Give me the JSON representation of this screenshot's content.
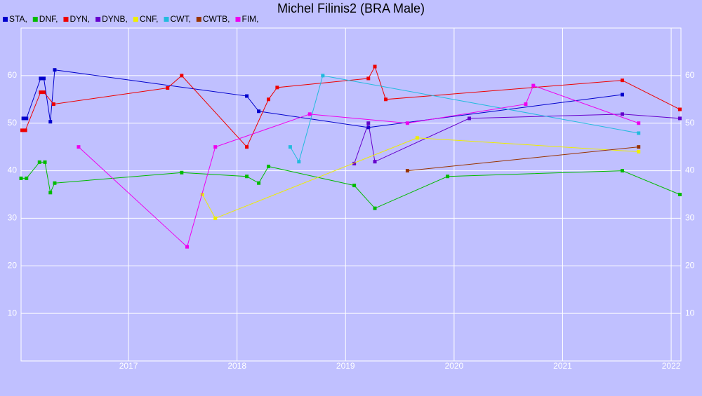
{
  "chart_data": {
    "type": "line",
    "title": "Michel Filinis2 (BRA Male)",
    "xlim": [
      2016.01,
      2022.09
    ],
    "xticks": [
      2017,
      2018,
      2019,
      2020,
      2021,
      2022
    ],
    "ylim": [
      0,
      70
    ],
    "yticks": [
      10,
      20,
      30,
      40,
      50,
      60
    ],
    "grid": true,
    "series": [
      {
        "name": "STA,",
        "color": "#0000cc",
        "x": [
          2016.03,
          2016.06,
          2016.19,
          2016.22,
          2016.28,
          2016.32,
          2018.09,
          2018.2,
          2019.21,
          2021.55
        ],
        "values": [
          51.0,
          51.0,
          59.4,
          59.4,
          50.3,
          61.2,
          55.7,
          52.5,
          49.1,
          56.0
        ]
      },
      {
        "name": "DNF,",
        "color": "#00bb00",
        "x": [
          2016.01,
          2016.06,
          2016.18,
          2016.23,
          2016.28,
          2016.32,
          2017.49,
          2018.09,
          2018.2,
          2018.29,
          2019.08,
          2019.27,
          2019.94,
          2021.55,
          2022.08
        ],
        "values": [
          38.4,
          38.4,
          41.8,
          41.8,
          35.4,
          37.4,
          39.6,
          38.8,
          37.4,
          40.9,
          36.9,
          32.1,
          38.8,
          40.0,
          35.0
        ]
      },
      {
        "name": "DYN,",
        "color": "#ee0000",
        "x": [
          2016.02,
          2016.05,
          2016.19,
          2016.22,
          2016.31,
          2017.36,
          2017.49,
          2018.09,
          2018.29,
          2018.37,
          2019.21,
          2019.27,
          2019.37,
          2021.55,
          2022.08
        ],
        "values": [
          48.5,
          48.5,
          56.5,
          56.5,
          54.0,
          57.4,
          60.0,
          45.0,
          55.0,
          57.5,
          59.4,
          61.9,
          55.0,
          59.0,
          52.9
        ]
      },
      {
        "name": "DYNB,",
        "color": "#6600cc",
        "x": [
          2019.08,
          2019.21,
          2019.27,
          2020.14,
          2021.55,
          2022.08
        ],
        "values": [
          41.5,
          50.0,
          41.9,
          51.0,
          51.9,
          51.0
        ]
      },
      {
        "name": "CNF,",
        "color": "#eeee00",
        "x": [
          2017.68,
          2017.8,
          2019.66,
          2021.7
        ],
        "values": [
          35.0,
          30.0,
          46.9,
          44.0
        ]
      },
      {
        "name": "CWT,",
        "color": "#22bbdd",
        "x": [
          2018.49,
          2018.57,
          2018.79,
          2021.7
        ],
        "values": [
          45.0,
          41.9,
          60.0,
          47.9
        ]
      },
      {
        "name": "CWTB,",
        "color": "#993300",
        "x": [
          2019.57,
          2021.7
        ],
        "values": [
          40.0,
          45.0
        ]
      },
      {
        "name": "FIM,",
        "color": "#ee00ee",
        "x": [
          2016.54,
          2017.54,
          2017.8,
          2018.67,
          2019.57,
          2020.66,
          2020.73,
          2021.7
        ],
        "values": [
          45.0,
          24.0,
          45.0,
          51.9,
          50.0,
          54.0,
          57.9,
          50.0
        ]
      }
    ]
  }
}
